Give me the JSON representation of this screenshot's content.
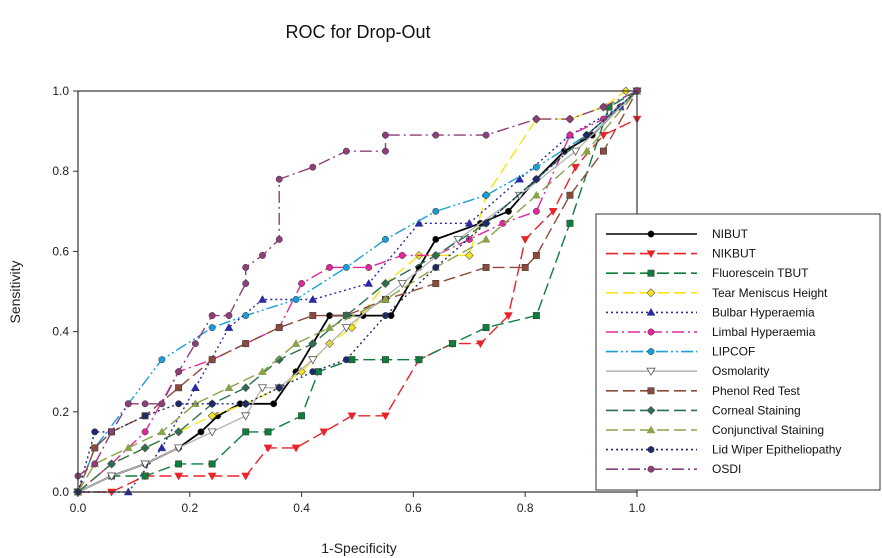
{
  "chart_data": {
    "type": "line",
    "title": "ROC for Drop-Out",
    "xlabel": "1-Specificity",
    "ylabel": "Sensitivity",
    "xlim": [
      0,
      1
    ],
    "ylim": [
      0,
      1
    ],
    "xticks": [
      "0.0",
      "0.2",
      "0.4",
      "0.6",
      "0.8",
      "1.0"
    ],
    "yticks": [
      "0.0",
      "0.2",
      "0.4",
      "0.6",
      "0.8",
      "1.0"
    ],
    "grid": false,
    "legend_position": "right",
    "series": [
      {
        "name": "NIBUT",
        "color": "#000000",
        "dash": "solid",
        "marker": "circle",
        "x": [
          0,
          0.06,
          0.12,
          0.18,
          0.22,
          0.25,
          0.29,
          0.35,
          0.39,
          0.42,
          0.45,
          0.51,
          0.56,
          0.61,
          0.64,
          0.72,
          0.77,
          0.82,
          0.87,
          0.92,
          0.97,
          1.0
        ],
        "y": [
          0,
          0.04,
          0.07,
          0.11,
          0.15,
          0.19,
          0.22,
          0.22,
          0.3,
          0.37,
          0.44,
          0.44,
          0.44,
          0.56,
          0.63,
          0.67,
          0.7,
          0.78,
          0.85,
          0.89,
          0.96,
          1.0
        ]
      },
      {
        "name": "NIKBUT",
        "color": "#e8232a",
        "dash": "long",
        "marker": "tri-down",
        "x": [
          0,
          0.06,
          0.12,
          0.18,
          0.24,
          0.3,
          0.34,
          0.39,
          0.44,
          0.49,
          0.55,
          0.61,
          0.67,
          0.72,
          0.77,
          0.8,
          0.85,
          0.89,
          0.94,
          1.0
        ],
        "y": [
          0,
          0.0,
          0.04,
          0.04,
          0.04,
          0.04,
          0.11,
          0.11,
          0.15,
          0.19,
          0.19,
          0.33,
          0.37,
          0.37,
          0.44,
          0.63,
          0.7,
          0.81,
          0.89,
          0.93
        ]
      },
      {
        "name": "Fluorescein TBUT",
        "color": "#0f7d3c",
        "dash": "long",
        "marker": "square",
        "x": [
          0,
          0.06,
          0.12,
          0.18,
          0.24,
          0.3,
          0.34,
          0.4,
          0.43,
          0.49,
          0.55,
          0.61,
          0.67,
          0.73,
          0.82,
          0.88,
          0.95,
          1.0
        ],
        "y": [
          0,
          0.04,
          0.04,
          0.07,
          0.07,
          0.15,
          0.15,
          0.19,
          0.3,
          0.33,
          0.33,
          0.33,
          0.37,
          0.41,
          0.44,
          0.67,
          0.96,
          1.0
        ]
      },
      {
        "name": "Tear Meniscus Height",
        "color": "#f5e51b",
        "dash": "long",
        "marker": "diamond",
        "x": [
          0,
          0.06,
          0.12,
          0.18,
          0.24,
          0.3,
          0.36,
          0.4,
          0.45,
          0.49,
          0.55,
          0.61,
          0.64,
          0.7,
          0.73,
          0.82,
          0.88,
          0.94,
          0.98,
          1.0
        ],
        "y": [
          0,
          0.07,
          0.11,
          0.15,
          0.19,
          0.22,
          0.26,
          0.3,
          0.37,
          0.41,
          0.52,
          0.59,
          0.59,
          0.59,
          0.74,
          0.93,
          0.93,
          0.96,
          1.0,
          1.0
        ]
      },
      {
        "name": "Bulbar Hyperaemia",
        "color": "#2b2ba0",
        "dash": "dot",
        "marker": "tri-up",
        "x": [
          0,
          0.09,
          0.15,
          0.21,
          0.27,
          0.33,
          0.42,
          0.52,
          0.61,
          0.7,
          0.79,
          0.88,
          0.97,
          1.0
        ],
        "y": [
          0,
          0.0,
          0.11,
          0.26,
          0.41,
          0.48,
          0.48,
          0.52,
          0.67,
          0.67,
          0.78,
          0.89,
          0.96,
          1.0
        ]
      },
      {
        "name": "Limbal Hyperaemia",
        "color": "#e0289a",
        "dash": "dashdot",
        "marker": "circle",
        "x": [
          0,
          0.06,
          0.12,
          0.18,
          0.24,
          0.3,
          0.36,
          0.4,
          0.45,
          0.52,
          0.58,
          0.64,
          0.7,
          0.76,
          0.82,
          0.88,
          0.94,
          1.0
        ],
        "y": [
          0,
          0.07,
          0.15,
          0.3,
          0.33,
          0.37,
          0.41,
          0.52,
          0.56,
          0.56,
          0.59,
          0.59,
          0.63,
          0.67,
          0.7,
          0.89,
          0.93,
          1.0
        ]
      },
      {
        "name": "LIPCOF",
        "color": "#1a9ed8",
        "dash": "dashdotdot",
        "marker": "circle",
        "x": [
          0,
          0.03,
          0.09,
          0.15,
          0.24,
          0.3,
          0.39,
          0.48,
          0.55,
          0.64,
          0.73,
          0.82,
          0.91,
          1.0
        ],
        "y": [
          0,
          0.11,
          0.22,
          0.33,
          0.41,
          0.44,
          0.48,
          0.56,
          0.63,
          0.7,
          0.74,
          0.81,
          0.89,
          1.0
        ]
      },
      {
        "name": "Osmolarity",
        "color": "#b8b8b8",
        "dash": "solid",
        "marker": "tri-down-open",
        "x": [
          0,
          0.06,
          0.12,
          0.18,
          0.24,
          0.3,
          0.33,
          0.36,
          0.42,
          0.48,
          0.58,
          0.68,
          0.79,
          0.89,
          1.0
        ],
        "y": [
          0,
          0.04,
          0.07,
          0.11,
          0.15,
          0.19,
          0.26,
          0.26,
          0.33,
          0.41,
          0.52,
          0.63,
          0.74,
          0.85,
          1.0
        ]
      },
      {
        "name": "Phenol Red Test",
        "color": "#8b4a3a",
        "dash": "long",
        "marker": "square",
        "x": [
          0,
          0.03,
          0.06,
          0.12,
          0.18,
          0.24,
          0.3,
          0.36,
          0.42,
          0.48,
          0.55,
          0.64,
          0.73,
          0.8,
          0.82,
          0.88,
          0.94,
          1.0
        ],
        "y": [
          0,
          0.11,
          0.15,
          0.19,
          0.26,
          0.33,
          0.37,
          0.41,
          0.44,
          0.44,
          0.48,
          0.52,
          0.56,
          0.56,
          0.59,
          0.74,
          0.85,
          1.0
        ]
      },
      {
        "name": "Corneal Staining",
        "color": "#2d6e4e",
        "dash": "long",
        "marker": "diamond",
        "x": [
          0,
          0.06,
          0.12,
          0.18,
          0.24,
          0.3,
          0.36,
          0.42,
          0.48,
          0.55,
          0.64,
          0.73,
          0.82,
          0.91,
          1.0
        ],
        "y": [
          0,
          0.07,
          0.11,
          0.15,
          0.22,
          0.26,
          0.33,
          0.37,
          0.44,
          0.52,
          0.59,
          0.67,
          0.78,
          0.89,
          1.0
        ]
      },
      {
        "name": "Conjunctival Staining",
        "color": "#8aa24a",
        "dash": "long",
        "marker": "tri-up",
        "x": [
          0,
          0.03,
          0.09,
          0.15,
          0.21,
          0.27,
          0.33,
          0.39,
          0.45,
          0.55,
          0.64,
          0.73,
          0.82,
          0.91,
          1.0
        ],
        "y": [
          0,
          0.07,
          0.11,
          0.15,
          0.22,
          0.26,
          0.3,
          0.37,
          0.41,
          0.48,
          0.56,
          0.63,
          0.74,
          0.85,
          1.0
        ]
      },
      {
        "name": "Lid Wiper Epitheliopathy",
        "color": "#1f2a6b",
        "dash": "dot",
        "marker": "circle",
        "x": [
          0,
          0.03,
          0.06,
          0.12,
          0.18,
          0.24,
          0.3,
          0.36,
          0.42,
          0.48,
          0.55,
          0.64,
          0.73,
          0.82,
          0.91,
          1.0
        ],
        "y": [
          0,
          0.15,
          0.15,
          0.19,
          0.22,
          0.22,
          0.22,
          0.26,
          0.3,
          0.33,
          0.44,
          0.56,
          0.67,
          0.78,
          0.89,
          1.0
        ]
      },
      {
        "name": "OSDI",
        "color": "#8e3f7a",
        "dash": "dashdot",
        "marker": "circle",
        "x": [
          0,
          0.03,
          0.06,
          0.09,
          0.12,
          0.15,
          0.18,
          0.21,
          0.24,
          0.27,
          0.3,
          0.3,
          0.33,
          0.36,
          0.36,
          0.42,
          0.48,
          0.55,
          0.55,
          0.64,
          0.73,
          0.82,
          0.88,
          0.94,
          1.0
        ],
        "y": [
          0.04,
          0.07,
          0.15,
          0.22,
          0.22,
          0.22,
          0.3,
          0.37,
          0.44,
          0.44,
          0.52,
          0.56,
          0.59,
          0.63,
          0.78,
          0.81,
          0.85,
          0.85,
          0.89,
          0.89,
          0.89,
          0.93,
          0.93,
          0.96,
          1.0
        ]
      }
    ]
  }
}
